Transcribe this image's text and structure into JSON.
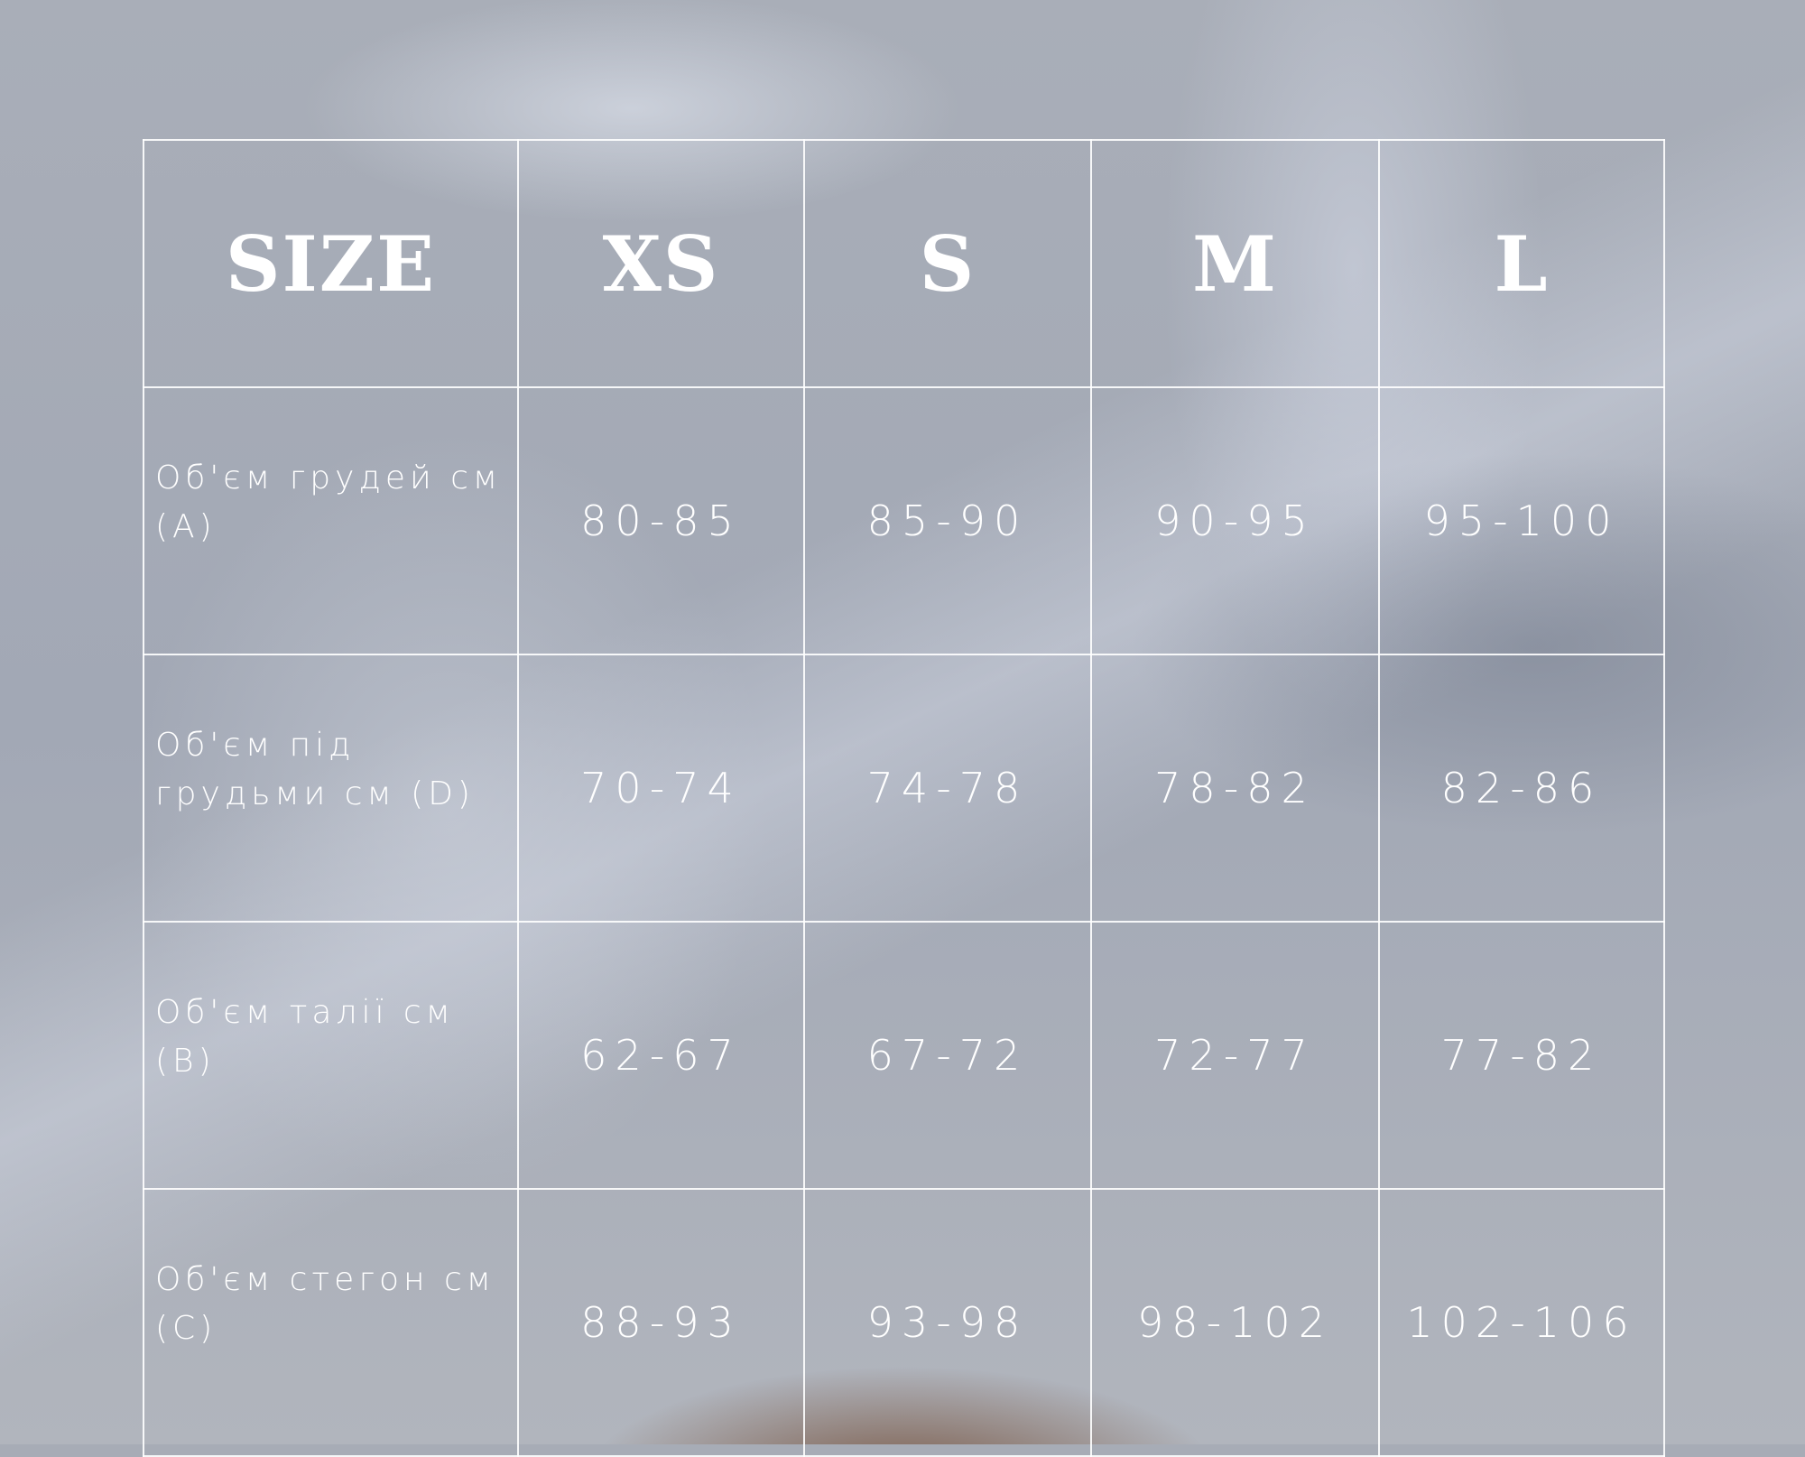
{
  "size_chart": {
    "headers": [
      "SIZE",
      "XS",
      "S",
      "M",
      "L"
    ],
    "rows": [
      {
        "label": "Об'єм грудей см (А)",
        "values": [
          "80-85",
          "85-90",
          "90-95",
          "95-100"
        ]
      },
      {
        "label": "Об'єм під грудьми см (D)",
        "values": [
          "70-74",
          "74-78",
          "78-82",
          "82-86"
        ]
      },
      {
        "label": "Об'єм талії см (В)",
        "values": [
          "62-67",
          "67-72",
          "72-77",
          "77-82"
        ]
      },
      {
        "label": "Об'єм стегон см (С)",
        "values": [
          "88-93",
          "93-98",
          "98-102",
          "102-106"
        ]
      }
    ]
  },
  "colors": {
    "text": "#ffffff",
    "grid": "#ffffff",
    "background": "#a7acb6"
  }
}
